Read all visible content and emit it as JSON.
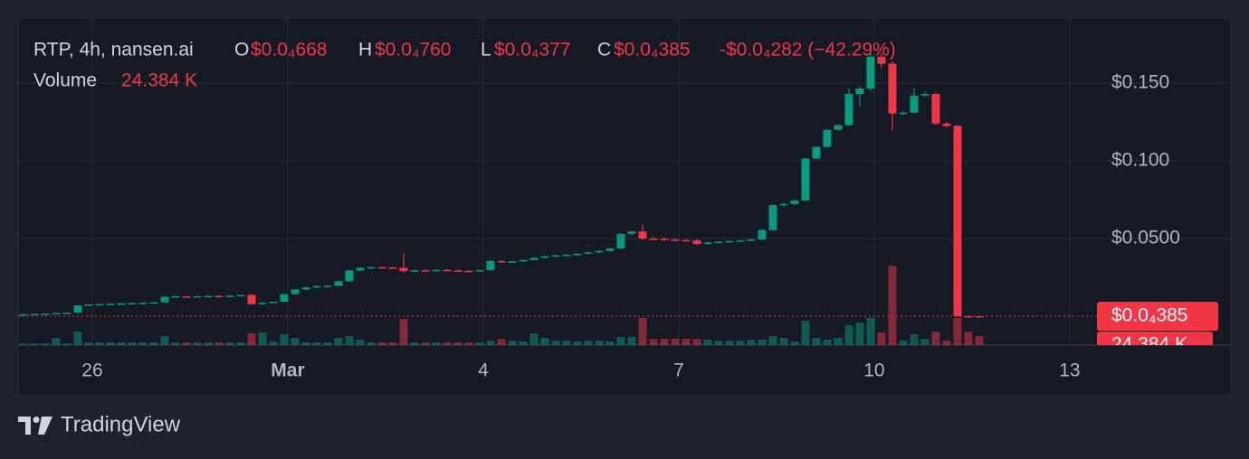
{
  "chart_data": {
    "type": "candlestick",
    "header": {
      "symbol": "RTP, 4h, nansen.ai",
      "open_key": "O",
      "open": "$0.0₄668",
      "high_key": "H",
      "high": "$0.0₄760",
      "low_key": "L",
      "low": "$0.0₄377",
      "close_key": "C",
      "close": "$0.0₄385",
      "change": "-$0.0₄282 (−42.29%)",
      "volume_key": "Volume",
      "volume": "24.384 K"
    },
    "x": [
      0,
      1,
      2,
      3,
      4,
      5,
      6,
      7,
      8,
      9,
      10,
      11,
      12,
      13,
      14,
      15,
      16,
      17,
      18,
      19,
      20,
      21,
      22,
      23,
      24,
      25,
      26,
      27,
      28,
      29,
      30,
      31,
      32,
      33,
      34,
      35,
      36,
      37,
      38,
      39,
      40,
      41,
      42,
      43,
      44,
      45,
      46,
      47,
      48,
      49,
      50,
      51,
      52,
      53,
      54,
      55,
      56,
      57,
      58,
      59,
      60,
      61,
      62,
      63,
      64,
      65,
      66,
      67,
      68,
      69,
      70,
      71,
      72,
      73,
      74,
      75,
      76,
      77,
      78,
      79,
      80,
      81,
      82,
      83,
      84,
      85,
      86,
      87,
      88
    ],
    "open": [
      0.0012,
      0.0013,
      0.0015,
      0.0017,
      0.002,
      0.0023,
      0.007,
      0.0076,
      0.0079,
      0.0081,
      0.0083,
      0.0085,
      0.0087,
      0.009,
      0.0125,
      0.0128,
      0.0126,
      0.0129,
      0.0131,
      0.0129,
      0.0132,
      0.0137,
      0.0078,
      0.0087,
      0.0093,
      0.0142,
      0.0172,
      0.0185,
      0.0194,
      0.0196,
      0.0225,
      0.0295,
      0.0312,
      0.0316,
      0.0314,
      0.0312,
      0.029,
      0.0296,
      0.0293,
      0.0298,
      0.0295,
      0.0292,
      0.029,
      0.0297,
      0.0355,
      0.035,
      0.0353,
      0.0362,
      0.0376,
      0.0386,
      0.0392,
      0.0396,
      0.0402,
      0.0411,
      0.042,
      0.0436,
      0.053,
      0.0545,
      0.05,
      0.0498,
      0.0494,
      0.049,
      0.0488,
      0.0465,
      0.0474,
      0.048,
      0.0484,
      0.0488,
      0.0494,
      0.0555,
      0.0715,
      0.0722,
      0.0745,
      0.1015,
      0.109,
      0.12,
      0.123,
      0.143,
      0.1465,
      0.167,
      0.1625,
      0.1305,
      0.131,
      0.142,
      0.143,
      0.124,
      0.1225,
      7e-05,
      6.68e-05
    ],
    "high": [
      0.0015,
      0.0016,
      0.0018,
      0.0022,
      0.0025,
      0.0072,
      0.008,
      0.0082,
      0.0085,
      0.0086,
      0.0088,
      0.009,
      0.0092,
      0.013,
      0.0133,
      0.0134,
      0.0133,
      0.0135,
      0.0136,
      0.0135,
      0.0138,
      0.014,
      0.009,
      0.0095,
      0.0145,
      0.0175,
      0.019,
      0.0198,
      0.02,
      0.0228,
      0.03,
      0.0318,
      0.0322,
      0.032,
      0.032,
      0.0405,
      0.03,
      0.0302,
      0.0302,
      0.0303,
      0.0301,
      0.0298,
      0.03,
      0.036,
      0.0362,
      0.0358,
      0.0365,
      0.038,
      0.039,
      0.0396,
      0.04,
      0.0406,
      0.0415,
      0.0425,
      0.044,
      0.0535,
      0.0552,
      0.059,
      0.051,
      0.0508,
      0.0502,
      0.0498,
      0.0495,
      0.0478,
      0.0484,
      0.0488,
      0.0492,
      0.0498,
      0.056,
      0.072,
      0.0732,
      0.0752,
      0.102,
      0.1095,
      0.1205,
      0.1235,
      0.1465,
      0.148,
      0.17,
      0.17,
      0.164,
      0.132,
      0.147,
      0.1445,
      0.144,
      0.125,
      0.123,
      8.2e-05,
      7.6e-05
    ],
    "low": [
      0.001,
      0.0011,
      0.0013,
      0.0015,
      0.0018,
      0.0021,
      0.0066,
      0.0072,
      0.0075,
      0.0077,
      0.0079,
      0.0081,
      0.0083,
      0.0088,
      0.012,
      0.0123,
      0.0122,
      0.0125,
      0.0127,
      0.0126,
      0.0128,
      0.0075,
      0.0074,
      0.0084,
      0.009,
      0.014,
      0.0168,
      0.018,
      0.0188,
      0.0192,
      0.0222,
      0.029,
      0.0305,
      0.0308,
      0.0308,
      0.028,
      0.0284,
      0.029,
      0.0288,
      0.0292,
      0.0289,
      0.0286,
      0.0286,
      0.0294,
      0.0345,
      0.0344,
      0.035,
      0.0358,
      0.0372,
      0.038,
      0.0386,
      0.039,
      0.0398,
      0.0406,
      0.0416,
      0.0432,
      0.0522,
      0.049,
      0.0488,
      0.0486,
      0.0484,
      0.0482,
      0.0458,
      0.046,
      0.0468,
      0.0474,
      0.0478,
      0.0482,
      0.049,
      0.055,
      0.0705,
      0.0716,
      0.074,
      0.1008,
      0.1085,
      0.1192,
      0.1225,
      0.135,
      0.145,
      0.16,
      0.1195,
      0.1295,
      0.1305,
      0.141,
      0.123,
      0.1215,
      3.8e-05,
      6.5e-05,
      3.77e-05
    ],
    "close": [
      0.0013,
      0.0015,
      0.0017,
      0.002,
      0.0023,
      0.007,
      0.0076,
      0.0079,
      0.0081,
      0.0083,
      0.0085,
      0.0087,
      0.009,
      0.0125,
      0.0128,
      0.0126,
      0.0129,
      0.0131,
      0.0129,
      0.0132,
      0.0137,
      0.0078,
      0.0087,
      0.0093,
      0.0142,
      0.0172,
      0.0185,
      0.0194,
      0.0196,
      0.0225,
      0.0295,
      0.0312,
      0.0316,
      0.0314,
      0.0312,
      0.029,
      0.0296,
      0.0293,
      0.0298,
      0.0295,
      0.0292,
      0.029,
      0.0297,
      0.0355,
      0.035,
      0.0353,
      0.0362,
      0.0376,
      0.0386,
      0.0392,
      0.0396,
      0.0402,
      0.0411,
      0.042,
      0.0436,
      0.053,
      0.0545,
      0.05,
      0.0498,
      0.0494,
      0.049,
      0.0488,
      0.0465,
      0.0474,
      0.048,
      0.0484,
      0.0488,
      0.0494,
      0.0555,
      0.0715,
      0.0722,
      0.0745,
      0.1015,
      0.109,
      0.12,
      0.123,
      0.143,
      0.1465,
      0.167,
      0.1625,
      0.1305,
      0.131,
      0.142,
      0.143,
      0.124,
      0.1225,
      7e-05,
      6.68e-05,
      3.85e-05
    ],
    "volume": [
      4880,
      4880,
      4880,
      19520,
      4880,
      36600,
      7320,
      7320,
      7320,
      7320,
      7320,
      7320,
      7320,
      24400,
      7320,
      7320,
      7320,
      7320,
      7320,
      7320,
      7320,
      31720,
      34160,
      9760,
      29280,
      19520,
      7320,
      7320,
      7320,
      19520,
      24400,
      14640,
      7320,
      7320,
      7320,
      70760,
      7320,
      7320,
      7320,
      7320,
      7320,
      7320,
      7320,
      12200,
      17080,
      12200,
      9760,
      31720,
      19520,
      12200,
      12200,
      9760,
      12200,
      12200,
      9760,
      21960,
      21960,
      73200,
      17080,
      17080,
      17080,
      17080,
      17080,
      14640,
      12200,
      12200,
      12200,
      14640,
      14640,
      24400,
      19520,
      9760,
      65880,
      19520,
      14640,
      19520,
      53680,
      61000,
      73200,
      34160,
      214720,
      12200,
      29280,
      17080,
      36600,
      12200,
      73200,
      36600,
      24384
    ],
    "up_color": "#089981",
    "down_color": "#f23645",
    "xlim": [
      -0.5,
      98.67
    ],
    "xticks": [
      {
        "value": 6.33,
        "label": "26"
      },
      {
        "value": 24.33,
        "label": "Mar"
      },
      {
        "value": 42.33,
        "label": "4"
      },
      {
        "value": 60.33,
        "label": "7"
      },
      {
        "value": 78.33,
        "label": "10"
      },
      {
        "value": 96.33,
        "label": "13"
      }
    ],
    "ylim": [
      -0.0186,
      0.1919
    ],
    "yticks": [
      {
        "value": 0.15,
        "label": "$0.150"
      },
      {
        "value": 0.1,
        "label": "$0.100"
      },
      {
        "value": 0.05,
        "label": "$0.0500"
      }
    ],
    "vlim": [
      0,
      883280
    ],
    "last_price_label": "$0.0₄385",
    "last_volume_label": "24.384 K",
    "grid": true,
    "brand": "TradingView"
  }
}
